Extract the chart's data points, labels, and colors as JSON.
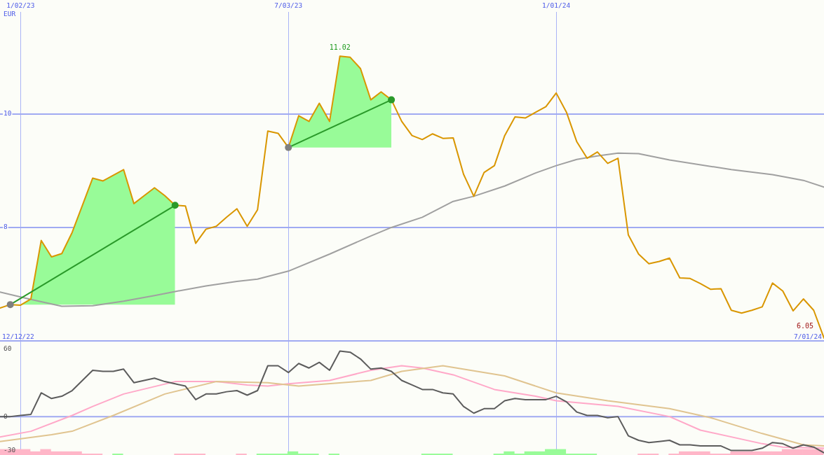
{
  "chart_data": [
    {
      "type": "line",
      "ylabel": "EUR",
      "annotations": [
        "12/12/22",
        "7/01/24"
      ],
      "x": [
        "2022-12-19",
        "2022-12-26",
        "2023-01-02",
        "2023-01-09",
        "2023-01-16",
        "2023-01-23",
        "2023-01-30",
        "2023-02-06",
        "2023-02-13",
        "2023-02-20",
        "2023-02-27",
        "2023-03-06",
        "2023-03-13",
        "2023-03-20",
        "2023-03-27",
        "2023-04-03",
        "2023-04-10",
        "2023-04-17",
        "2023-04-24",
        "2023-05-01",
        "2023-05-08",
        "2023-05-15",
        "2023-05-22",
        "2023-05-29",
        "2023-06-05",
        "2023-06-12",
        "2023-06-19",
        "2023-06-26",
        "2023-07-03",
        "2023-07-10",
        "2023-07-17",
        "2023-07-24",
        "2023-07-31",
        "2023-08-07",
        "2023-08-14",
        "2023-08-21",
        "2023-08-28",
        "2023-09-04",
        "2023-09-11",
        "2023-09-18",
        "2023-09-25",
        "2023-10-02",
        "2023-10-09",
        "2023-10-16",
        "2023-10-23",
        "2023-10-30",
        "2023-11-06",
        "2023-11-13",
        "2023-11-20",
        "2023-11-27",
        "2023-12-04",
        "2023-12-11",
        "2023-12-18",
        "2023-12-25",
        "2024-01-01",
        "2024-01-08",
        "2024-01-15",
        "2024-01-22",
        "2024-01-29",
        "2024-02-05",
        "2024-02-12",
        "2024-02-19",
        "2024-02-26",
        "2024-03-04",
        "2024-03-11",
        "2024-03-18",
        "2024-03-25",
        "2024-04-01",
        "2024-04-08",
        "2024-04-15",
        "2024-04-22",
        "2024-04-29",
        "2024-05-06",
        "2024-05-13",
        "2024-05-20",
        "2024-05-27",
        "2024-06-03",
        "2024-06-10",
        "2024-06-17",
        "2024-06-24",
        "2024-07-01"
      ],
      "xlim": [
        "2022-12-19",
        "2024-07-01"
      ],
      "xticks": [
        {
          "value": "2023-01-02",
          "label": "1/02/23"
        },
        {
          "value": "2023-07-03",
          "label": "7/03/23"
        },
        {
          "value": "2024-01-01",
          "label": "1/01/24"
        }
      ],
      "ylim": [
        6,
        11.8
      ],
      "yticks": [
        8,
        10
      ],
      "grid": true,
      "series": [
        {
          "type": "area",
          "color": "#98fb98",
          "x": [
            "2022-12-26",
            "2023-01-02",
            "2023-01-09",
            "2023-01-16",
            "2023-01-23",
            "2023-01-30",
            "2023-02-06",
            "2023-02-13",
            "2023-02-20",
            "2023-02-27",
            "2023-03-06",
            "2023-03-13",
            "2023-03-20",
            "2023-03-27",
            "2023-04-03",
            "2023-04-10",
            "2023-04-17"
          ],
          "values": [
            null,
            null,
            null,
            null,
            null,
            null,
            null,
            null,
            null,
            null,
            null,
            null,
            null,
            null,
            null,
            null,
            null
          ],
          "upper": [
            6.64,
            6.63,
            6.74,
            7.77,
            7.48,
            7.54,
            7.91,
            8.39,
            8.87,
            8.82,
            8.92,
            9.02,
            8.42,
            8.56,
            8.7,
            8.56,
            8.39
          ],
          "lower": [
            6.64,
            6.64,
            6.64,
            6.64,
            6.64,
            6.64,
            6.64,
            6.64,
            6.64,
            6.64,
            6.64,
            6.64,
            6.64,
            6.64,
            6.64,
            6.64,
            6.64
          ]
        },
        {
          "type": "area",
          "color": "#98fb98",
          "x": [
            "2023-07-03",
            "2023-07-10",
            "2023-07-17",
            "2023-07-24",
            "2023-07-31",
            "2023-08-07",
            "2023-08-14",
            "2023-08-21",
            "2023-08-28",
            "2023-09-04",
            "2023-09-11"
          ],
          "values": [
            null,
            null,
            null,
            null,
            null,
            null,
            null,
            null,
            null,
            null,
            null
          ],
          "upper": [
            9.41,
            9.97,
            9.87,
            10.19,
            9.87,
            11.02,
            11.0,
            10.8,
            10.25,
            10.39,
            10.25
          ],
          "lower": [
            9.41,
            9.41,
            9.41,
            9.41,
            9.41,
            9.41,
            9.41,
            9.41,
            9.41,
            9.41,
            9.41
          ]
        },
        {
          "color": "#a0a0a0",
          "x": [
            "2022-12-19",
            "2023-01-09",
            "2023-01-30",
            "2023-02-20",
            "2023-03-13",
            "2023-04-03",
            "2023-04-17",
            "2023-05-08",
            "2023-05-29",
            "2023-06-12",
            "2023-07-03",
            "2023-07-31",
            "2023-08-28",
            "2023-09-11",
            "2023-10-02",
            "2023-10-23",
            "2023-11-06",
            "2023-11-27",
            "2023-12-18",
            "2024-01-01",
            "2024-01-15",
            "2024-01-29",
            "2024-02-12",
            "2024-02-26",
            "2024-03-18",
            "2024-04-29",
            "2024-05-27",
            "2024-06-17",
            "2024-07-01"
          ],
          "values": [
            6.86,
            6.73,
            6.61,
            6.62,
            6.7,
            6.8,
            6.87,
            6.97,
            7.05,
            7.09,
            7.23,
            7.53,
            7.85,
            8.0,
            8.18,
            8.46,
            8.55,
            8.73,
            8.96,
            9.09,
            9.2,
            9.26,
            9.31,
            9.3,
            9.19,
            9.02,
            8.93,
            8.83,
            8.71
          ]
        },
        {
          "color": "#d99600",
          "values": [
            6.58,
            6.64,
            6.63,
            6.74,
            7.77,
            7.48,
            7.54,
            7.91,
            8.39,
            8.87,
            8.82,
            8.92,
            9.02,
            8.42,
            8.56,
            8.7,
            8.56,
            8.39,
            8.38,
            7.72,
            7.97,
            8.02,
            8.18,
            8.33,
            8.02,
            8.31,
            9.7,
            9.66,
            9.41,
            9.97,
            9.87,
            10.19,
            9.87,
            11.02,
            11.0,
            10.8,
            10.25,
            10.39,
            10.25,
            9.87,
            9.62,
            9.55,
            9.65,
            9.57,
            9.58,
            8.94,
            8.55,
            8.97,
            9.09,
            9.62,
            9.95,
            9.93,
            10.03,
            10.13,
            10.37,
            10.03,
            9.51,
            9.22,
            9.33,
            9.13,
            9.22,
            7.87,
            7.53,
            7.36,
            7.4,
            7.46,
            7.11,
            7.1,
            7.01,
            6.91,
            6.92,
            6.54,
            6.49,
            6.54,
            6.6,
            7.02,
            6.88,
            6.53,
            6.74,
            6.54,
            6.05
          ],
          "value_labels": [
            null,
            null,
            null,
            null,
            null,
            null,
            null,
            null,
            null,
            null,
            null,
            null,
            null,
            null,
            null,
            null,
            null,
            null,
            null,
            null,
            null,
            null,
            null,
            null,
            null,
            null,
            null,
            null,
            null,
            null,
            null,
            null,
            null,
            "11.02",
            null,
            null,
            null,
            null,
            null,
            null,
            null,
            null,
            null,
            null,
            null,
            null,
            null,
            null,
            null,
            null,
            null,
            null,
            null,
            null,
            null,
            null,
            null,
            null,
            null,
            null,
            null,
            null,
            null,
            null,
            null,
            null,
            null,
            null,
            null,
            null,
            null,
            null,
            null,
            null,
            null,
            null,
            null,
            null,
            null,
            null,
            "6.05"
          ]
        },
        {
          "color": "#2a9a2a",
          "x": [
            "2022-12-26",
            "2023-04-17"
          ],
          "values": [
            6.64,
            8.39
          ],
          "colors": [
            "#808080",
            "#2a9a2a"
          ],
          "marker": "circle"
        },
        {
          "color": "#2a9a2a",
          "x": [
            "2023-07-03",
            "2023-09-11"
          ],
          "values": [
            9.41,
            10.25
          ],
          "colors": [
            "#808080",
            "#2a9a2a"
          ],
          "marker": "circle"
        }
      ]
    },
    {
      "type": "line",
      "tick_labels": "y",
      "x": [
        "2022-12-19",
        "2022-12-26",
        "2023-01-02",
        "2023-01-09",
        "2023-01-16",
        "2023-01-23",
        "2023-01-30",
        "2023-02-06",
        "2023-02-13",
        "2023-02-20",
        "2023-02-27",
        "2023-03-06",
        "2023-03-13",
        "2023-03-20",
        "2023-03-27",
        "2023-04-03",
        "2023-04-10",
        "2023-04-17",
        "2023-04-24",
        "2023-05-01",
        "2023-05-08",
        "2023-05-15",
        "2023-05-22",
        "2023-05-29",
        "2023-06-05",
        "2023-06-12",
        "2023-06-19",
        "2023-06-26",
        "2023-07-03",
        "2023-07-10",
        "2023-07-17",
        "2023-07-24",
        "2023-07-31",
        "2023-08-07",
        "2023-08-14",
        "2023-08-21",
        "2023-08-28",
        "2023-09-04",
        "2023-09-11",
        "2023-09-18",
        "2023-09-25",
        "2023-10-02",
        "2023-10-09",
        "2023-10-16",
        "2023-10-23",
        "2023-10-30",
        "2023-11-06",
        "2023-11-13",
        "2023-11-20",
        "2023-11-27",
        "2023-12-04",
        "2023-12-11",
        "2023-12-18",
        "2023-12-25",
        "2024-01-01",
        "2024-01-08",
        "2024-01-15",
        "2024-01-22",
        "2024-01-29",
        "2024-02-05",
        "2024-02-12",
        "2024-02-19",
        "2024-02-26",
        "2024-03-04",
        "2024-03-11",
        "2024-03-18",
        "2024-03-25",
        "2024-04-01",
        "2024-04-08",
        "2024-04-15",
        "2024-04-22",
        "2024-04-29",
        "2024-05-06",
        "2024-05-13",
        "2024-05-20",
        "2024-05-27",
        "2024-06-03",
        "2024-06-10",
        "2024-06-17",
        "2024-06-24",
        "2024-07-01"
      ],
      "xlim": [
        "2022-12-19",
        "2024-07-01"
      ],
      "xticks": [
        {
          "value": "2023-01-02",
          "label": null
        },
        {
          "value": "2023-07-03",
          "label": null
        },
        {
          "value": "2024-01-01",
          "label": null
        }
      ],
      "ylim": [
        -34,
        67
      ],
      "yticks": [
        60,
        0,
        -30
      ],
      "grid": "x",
      "ref_lines": [
        {
          "axis": "y",
          "value": 0,
          "color": "#a0aaf2"
        }
      ],
      "series": [
        {
          "type": "bar",
          "x": [
            "2022-12-22",
            "2022-12-29",
            "2023-01-05",
            "2023-01-12",
            "2023-01-19",
            "2023-01-26",
            "2023-02-02",
            "2023-02-09",
            "2023-02-16",
            "2023-02-23",
            "2023-03-09",
            "2023-04-20",
            "2023-04-27",
            "2023-05-04",
            "2023-06-01",
            "2023-06-15",
            "2023-06-22",
            "2023-06-29",
            "2023-07-06",
            "2023-07-13",
            "2023-07-20",
            "2023-08-03",
            "2023-10-05",
            "2023-10-12",
            "2023-10-19",
            "2023-11-23",
            "2023-11-30",
            "2023-12-07",
            "2023-12-14",
            "2023-12-21",
            "2023-12-28",
            "2024-01-04",
            "2024-01-11",
            "2024-01-18",
            "2024-01-25",
            "2024-02-29",
            "2024-03-07",
            "2024-03-21",
            "2024-03-28",
            "2024-04-04",
            "2024-04-11",
            "2024-04-18",
            "2024-04-25",
            "2024-05-02",
            "2024-05-09",
            "2024-05-16",
            "2024-05-23",
            "2024-05-30",
            "2024-06-06",
            "2024-06-13",
            "2024-06-20",
            "2024-06-27"
          ],
          "values": [
            5,
            5,
            5,
            3,
            5,
            3,
            3,
            3,
            1,
            1,
            1,
            1,
            1,
            1,
            1,
            1,
            1,
            1,
            3,
            1,
            1,
            1,
            1,
            1,
            1,
            1,
            3,
            1,
            3,
            3,
            5,
            5,
            1,
            1,
            1,
            1,
            1,
            1,
            3,
            3,
            3,
            1,
            1,
            3,
            3,
            3,
            3,
            3,
            5,
            5,
            5,
            5
          ],
          "base": [
            -34,
            -34,
            -34,
            -34,
            -34,
            -34,
            -34,
            -34,
            -34,
            -34,
            -34,
            -34,
            -34,
            -34,
            -34,
            -34,
            -34,
            -34,
            -34,
            -34,
            -34,
            -34,
            -34,
            -34,
            -34,
            -34,
            -34,
            -34,
            -34,
            -34,
            -34,
            -34,
            -34,
            -34,
            -34,
            -34,
            -34,
            -34,
            -34,
            -34,
            -34,
            -34,
            -34,
            -34,
            -34,
            -34,
            -34,
            -34,
            -34,
            -34,
            -34,
            -34
          ],
          "colors": [
            "#ffb6c8",
            "#ffb6c8",
            "#ffb6c8",
            "#ffb6c8",
            "#ffb6c8",
            "#ffb6c8",
            "#ffb6c8",
            "#ffb6c8",
            "#ffb6c8",
            "#ffb6c8",
            "#98fb98",
            "#ffb6c8",
            "#ffb6c8",
            "#ffb6c8",
            "#ffb6c8",
            "#98fb98",
            "#98fb98",
            "#98fb98",
            "#98fb98",
            "#98fb98",
            "#98fb98",
            "#98fb98",
            "#98fb98",
            "#98fb98",
            "#98fb98",
            "#98fb98",
            "#98fb98",
            "#98fb98",
            "#98fb98",
            "#98fb98",
            "#98fb98",
            "#98fb98",
            "#98fb98",
            "#98fb98",
            "#98fb98",
            "#ffb6c8",
            "#ffb6c8",
            "#ffb6c8",
            "#ffb6c8",
            "#ffb6c8",
            "#ffb6c8",
            "#ffb6c8",
            "#ffb6c8",
            "#ffb6c8",
            "#ffb6c8",
            "#ffb6c8",
            "#ffb6c8",
            "#ffb6c8",
            "#ffb6c8",
            "#ffb6c8",
            "#ffb6c8",
            "#ffb6c8"
          ]
        },
        {
          "color": "#ffa8c8",
          "x": [
            "2022-12-19",
            "2023-01-09",
            "2023-02-06",
            "2023-02-20",
            "2023-03-13",
            "2023-04-17",
            "2023-05-15",
            "2023-06-05",
            "2023-06-19",
            "2023-07-03",
            "2023-07-31",
            "2023-08-28",
            "2023-09-18",
            "2023-10-02",
            "2023-10-23",
            "2023-11-20",
            "2023-12-18",
            "2024-01-01",
            "2024-02-12",
            "2024-03-18",
            "2024-04-08",
            "2024-05-20",
            "2024-06-03",
            "2024-07-01"
          ],
          "values": [
            -18,
            -13,
            1,
            9,
            20,
            31,
            31,
            28,
            27,
            29,
            32,
            41,
            45,
            43,
            37,
            24,
            18,
            14,
            9,
            0,
            -12,
            -24,
            -27,
            -28
          ]
        },
        {
          "color": "#e0c490",
          "x": [
            "2022-12-19",
            "2023-01-23",
            "2023-02-06",
            "2023-03-06",
            "2023-04-10",
            "2023-05-15",
            "2023-06-19",
            "2023-07-10",
            "2023-08-28",
            "2023-09-18",
            "2023-10-16",
            "2023-11-27",
            "2024-01-01",
            "2024-02-05",
            "2024-03-18",
            "2024-04-15",
            "2024-05-20",
            "2024-06-17",
            "2024-07-01"
          ],
          "values": [
            -22,
            -16,
            -13,
            1,
            20,
            31,
            30,
            27,
            32,
            40,
            45,
            36,
            21,
            14,
            7,
            -1,
            -15,
            -25,
            -26
          ]
        },
        {
          "color": "#5c5c5c",
          "values": [
            0,
            0,
            1,
            2,
            21,
            16,
            18,
            23,
            32,
            41,
            40,
            40,
            42,
            30,
            32,
            34,
            31,
            29,
            27,
            15,
            20,
            20,
            22,
            23,
            19,
            23,
            45,
            45,
            39,
            47,
            43,
            48,
            41,
            58,
            57,
            51,
            42,
            43,
            40,
            32,
            28,
            24,
            24,
            21,
            20,
            9,
            3,
            7,
            7,
            14,
            16,
            15,
            15,
            15,
            18,
            13,
            4,
            1,
            1,
            -1,
            0,
            -17,
            -21,
            -23,
            -22,
            -21,
            -25,
            -25,
            -26,
            -26,
            -26,
            -30,
            -30,
            -30,
            -28,
            -23,
            -24,
            -28,
            -25,
            -27,
            -32
          ]
        }
      ]
    }
  ]
}
